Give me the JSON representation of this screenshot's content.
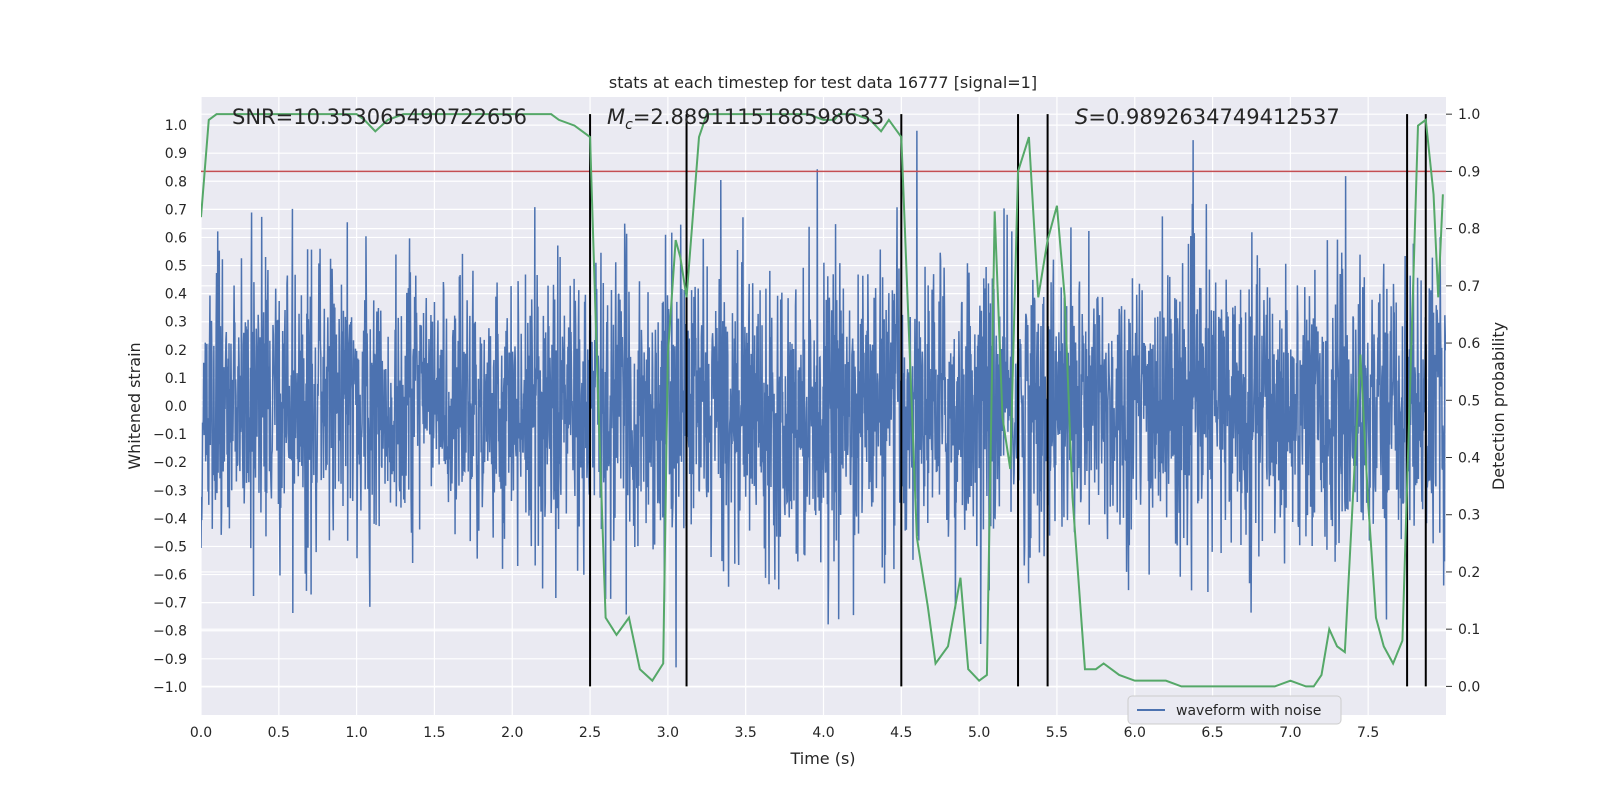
{
  "chart_data": {
    "type": "line",
    "title": "stats at each timestep for test data 16777 [signal=1]",
    "xlabel": "Time (s)",
    "ylabel": "Whitened strain",
    "y2label": "Detection probability",
    "xlim": [
      0.0,
      8.0
    ],
    "ylim": [
      -1.1,
      1.1
    ],
    "y2lim": [
      -0.05,
      1.03
    ],
    "xticks": [
      "0.0",
      "0.5",
      "1.0",
      "1.5",
      "2.0",
      "2.5",
      "3.0",
      "3.5",
      "4.0",
      "4.5",
      "5.0",
      "5.5",
      "6.0",
      "6.5",
      "7.0",
      "7.5"
    ],
    "yticks": [
      "1.0",
      "0.9",
      "0.8",
      "0.7",
      "0.6",
      "0.5",
      "0.4",
      "0.3",
      "0.2",
      "0.1",
      "0.0",
      "-0.1",
      "-0.2",
      "-0.3",
      "-0.4",
      "-0.5",
      "-0.6",
      "-0.7",
      "-0.8",
      "-0.9",
      "-1.0"
    ],
    "y2ticks": [
      "1.0",
      "0.9",
      "0.8",
      "0.7",
      "0.6",
      "0.5",
      "0.4",
      "0.3",
      "0.2",
      "0.1",
      "0.0"
    ],
    "threshold": 0.9,
    "vlines": [
      2.5,
      3.12,
      4.5,
      5.25,
      5.44,
      7.75,
      7.87
    ],
    "annotations": {
      "snr": "SNR=10.353065490722656",
      "mc_symbol": "M",
      "mc_sub": "c",
      "mc_value": "=2.8891115188598633",
      "s_symbol": "S",
      "s_value": "=0.9892634749412537"
    },
    "legend": {
      "label": "waveform with noise",
      "location": "lower-right"
    },
    "series": [
      {
        "name": "waveform with noise",
        "color": "#4c72b0",
        "style": "noise",
        "sample_rate": 400,
        "typical_amplitude": 0.45,
        "max_amplitude": 0.98
      },
      {
        "name": "detection probability",
        "color": "#55a868",
        "axis": "right",
        "x": [
          0.0,
          0.05,
          0.1,
          0.2,
          0.4,
          0.6,
          0.8,
          1.0,
          1.05,
          1.12,
          1.2,
          1.3,
          1.5,
          1.7,
          1.9,
          2.0,
          2.1,
          2.25,
          2.3,
          2.4,
          2.5,
          2.55,
          2.6,
          2.67,
          2.75,
          2.82,
          2.9,
          2.97,
          3.0,
          3.05,
          3.08,
          3.12,
          3.2,
          3.25,
          3.3,
          3.4,
          3.5,
          3.7,
          3.9,
          4.0,
          4.07,
          4.1,
          4.2,
          4.3,
          4.37,
          4.42,
          4.5,
          4.6,
          4.67,
          4.72,
          4.8,
          4.88,
          4.93,
          5.0,
          5.05,
          5.1,
          5.15,
          5.2,
          5.25,
          5.32,
          5.38,
          5.44,
          5.5,
          5.55,
          5.6,
          5.68,
          5.75,
          5.8,
          5.85,
          5.9,
          6.0,
          6.1,
          6.2,
          6.3,
          6.5,
          6.8,
          6.9,
          7.0,
          7.1,
          7.15,
          7.2,
          7.25,
          7.3,
          7.35,
          7.4,
          7.45,
          7.5,
          7.55,
          7.6,
          7.66,
          7.72,
          7.76,
          7.82,
          7.87,
          7.92,
          7.95,
          7.98
        ],
        "y": [
          0.82,
          0.99,
          1.0,
          1.0,
          1.0,
          1.0,
          1.0,
          1.0,
          0.99,
          0.97,
          0.99,
          1.0,
          1.0,
          1.0,
          1.0,
          1.0,
          1.0,
          1.0,
          0.99,
          0.98,
          0.96,
          0.52,
          0.12,
          0.09,
          0.12,
          0.03,
          0.01,
          0.04,
          0.58,
          0.78,
          0.75,
          0.68,
          0.96,
          1.0,
          1.0,
          1.0,
          1.0,
          1.0,
          1.0,
          0.99,
          0.99,
          1.0,
          1.0,
          0.99,
          0.97,
          0.99,
          0.96,
          0.26,
          0.14,
          0.04,
          0.07,
          0.19,
          0.03,
          0.01,
          0.02,
          0.83,
          0.47,
          0.38,
          0.9,
          0.96,
          0.68,
          0.78,
          0.84,
          0.68,
          0.33,
          0.03,
          0.03,
          0.04,
          0.03,
          0.02,
          0.01,
          0.01,
          0.01,
          0.0,
          0.0,
          0.0,
          0.0,
          0.01,
          0.0,
          0.0,
          0.02,
          0.1,
          0.07,
          0.06,
          0.32,
          0.58,
          0.32,
          0.12,
          0.07,
          0.04,
          0.08,
          0.44,
          0.98,
          0.99,
          0.86,
          0.68,
          0.86
        ]
      }
    ]
  }
}
